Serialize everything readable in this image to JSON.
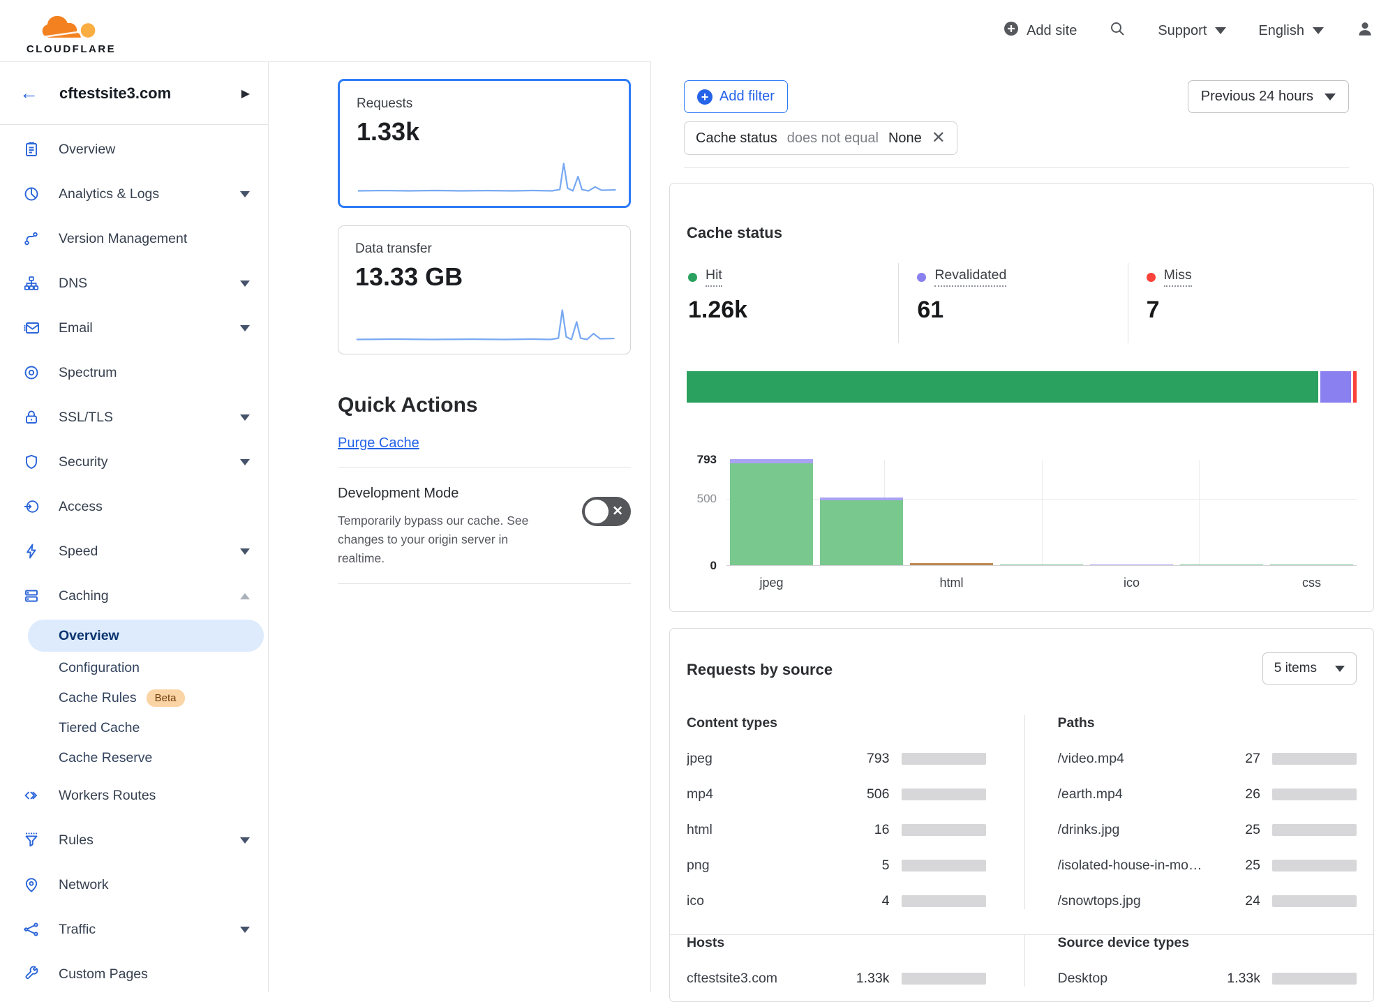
{
  "colors": {
    "hit": "#2aa15e",
    "hit_light": "#79c98e",
    "revalidated": "#8b80f0",
    "revalidated_light": "#aaa2f3",
    "miss": "#f9423a",
    "other": "#c08a52",
    "blue": "#166ff4"
  },
  "header": {
    "brand": "CLOUDFLARE",
    "add_site": "Add site",
    "support": "Support",
    "language": "English"
  },
  "sidebar": {
    "site": "cftestsite3.com",
    "items": [
      {
        "label": "Overview",
        "icon": "clipboard",
        "type": "main"
      },
      {
        "label": "Analytics & Logs",
        "icon": "pie-chart",
        "type": "main",
        "caret": "down"
      },
      {
        "label": "Version Management",
        "icon": "branch",
        "type": "main"
      },
      {
        "label": "DNS",
        "icon": "sitemap",
        "type": "main",
        "caret": "down"
      },
      {
        "label": "Email",
        "icon": "envelope",
        "type": "main",
        "caret": "down"
      },
      {
        "label": "Spectrum",
        "icon": "spectrum",
        "type": "main"
      },
      {
        "label": "SSL/TLS",
        "icon": "padlock",
        "type": "main",
        "caret": "down"
      },
      {
        "label": "Security",
        "icon": "shield",
        "type": "main",
        "caret": "down"
      },
      {
        "label": "Access",
        "icon": "door-arrow",
        "type": "main"
      },
      {
        "label": "Speed",
        "icon": "lightning",
        "type": "main",
        "caret": "down"
      },
      {
        "label": "Caching",
        "icon": "server-stack",
        "type": "main",
        "caret": "up"
      },
      {
        "label": "Overview",
        "type": "sub",
        "active": true
      },
      {
        "label": "Configuration",
        "type": "sub"
      },
      {
        "label": "Cache Rules",
        "type": "sub",
        "badge": "Beta"
      },
      {
        "label": "Tiered Cache",
        "type": "sub"
      },
      {
        "label": "Cache Reserve",
        "type": "sub"
      },
      {
        "label": "Workers Routes",
        "icon": "code",
        "type": "main"
      },
      {
        "label": "Rules",
        "icon": "funnel",
        "type": "main",
        "caret": "down"
      },
      {
        "label": "Network",
        "icon": "map-pin",
        "type": "main"
      },
      {
        "label": "Traffic",
        "icon": "share-nodes",
        "type": "main",
        "caret": "down"
      },
      {
        "label": "Custom Pages",
        "icon": "wrench",
        "type": "main"
      }
    ]
  },
  "summary_cards": {
    "requests": {
      "label": "Requests",
      "value": "1.33k"
    },
    "transfer": {
      "label": "Data transfer",
      "value": "13.33 GB"
    }
  },
  "quick_actions": {
    "title": "Quick Actions",
    "purge_cache": "Purge Cache",
    "dev_mode_title": "Development Mode",
    "dev_mode_desc": "Temporarily bypass our cache. See changes to your origin server in realtime."
  },
  "filters": {
    "add_filter": "Add filter",
    "chip": {
      "field": "Cache status",
      "operator": "does not equal",
      "value": "None"
    },
    "time_range": "Previous 24 hours"
  },
  "cache_status": {
    "title": "Cache status",
    "stats": [
      {
        "key": "hit",
        "label": "Hit",
        "value": "1.26k",
        "num": 1260
      },
      {
        "key": "revalidated",
        "label": "Revalidated",
        "value": "61",
        "num": 61
      },
      {
        "key": "miss",
        "label": "Miss",
        "value": "7",
        "num": 7
      }
    ]
  },
  "chart_data": {
    "type": "bar",
    "title": "Cache status by content type",
    "ylim": [
      0,
      793
    ],
    "y_ticks": [
      793,
      500,
      0
    ],
    "x_tick_labels": [
      "jpeg",
      "html",
      "ico",
      "css"
    ],
    "grid": true,
    "bars": [
      {
        "label": "jpeg",
        "show_label": true,
        "segments": [
          {
            "key": "hit",
            "value": 760
          },
          {
            "key": "revalidated",
            "value": 33
          }
        ]
      },
      {
        "label": "mp4",
        "show_label": false,
        "segments": [
          {
            "key": "hit",
            "value": 483
          },
          {
            "key": "revalidated",
            "value": 23
          }
        ]
      },
      {
        "label": "html",
        "show_label": true,
        "segments": [
          {
            "key": "other",
            "value": 16
          }
        ]
      },
      {
        "label": "png",
        "show_label": false,
        "segments": [
          {
            "key": "hit",
            "value": 5
          }
        ]
      },
      {
        "label": "ico",
        "show_label": true,
        "segments": [
          {
            "key": "revalidated",
            "value": 4
          }
        ]
      },
      {
        "label": "",
        "show_label": false,
        "segments": [
          {
            "key": "hit",
            "value": 2
          }
        ]
      },
      {
        "label": "css",
        "show_label": true,
        "segments": [
          {
            "key": "hit",
            "value": 1
          }
        ]
      }
    ]
  },
  "requests_by_source": {
    "title": "Requests by source",
    "items_dropdown": "5 items",
    "content_types": {
      "title": "Content types",
      "rows": [
        {
          "label": "jpeg",
          "value": "793",
          "fill": 0.6
        },
        {
          "label": "mp4",
          "value": "506",
          "fill": 0.38
        },
        {
          "label": "html",
          "value": "16",
          "fill": 0.013
        },
        {
          "label": "png",
          "value": "5",
          "fill": 0.006
        },
        {
          "label": "ico",
          "value": "4",
          "fill": 0.005
        }
      ]
    },
    "paths": {
      "title": "Paths",
      "rows": [
        {
          "label": "/video.mp4",
          "value": "27",
          "fill": 0.021
        },
        {
          "label": "/earth.mp4",
          "value": "26",
          "fill": 0.02
        },
        {
          "label": "/drinks.jpg",
          "value": "25",
          "fill": 0.019
        },
        {
          "label": "/isolated-house-in-mo…",
          "value": "25",
          "fill": 0.019
        },
        {
          "label": "/snowtops.jpg",
          "value": "24",
          "fill": 0.018
        }
      ]
    },
    "hosts": {
      "title": "Hosts",
      "rows": [
        {
          "label": "cftestsite3.com",
          "value": "1.33k",
          "fill": 1
        }
      ]
    },
    "devices": {
      "title": "Source device types",
      "rows": [
        {
          "label": "Desktop",
          "value": "1.33k",
          "fill": 1
        }
      ]
    }
  }
}
